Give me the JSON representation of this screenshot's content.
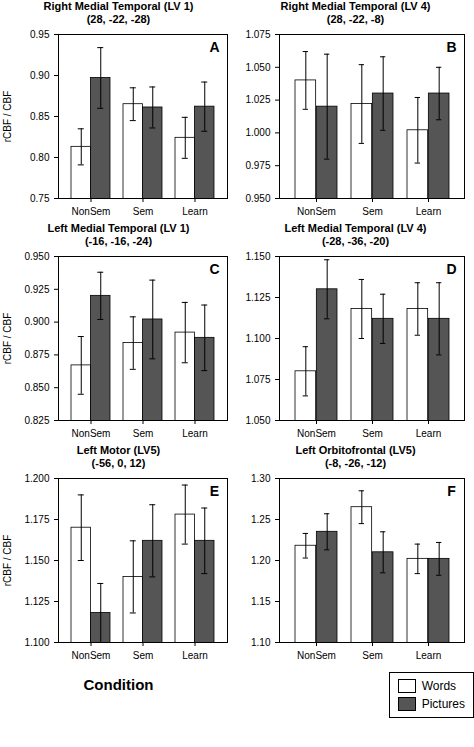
{
  "chart_data": [
    {
      "type": "bar",
      "title": "Right Medial Temporal (LV 1)",
      "subtitle": "(28, -22, -28)",
      "categories": [
        "NonSem",
        "Sem",
        "Learn"
      ],
      "series": [
        {
          "name": "Words",
          "color": "#ffffff",
          "values": [
            0.813,
            0.865,
            0.824
          ],
          "errors": [
            0.022,
            0.02,
            0.025
          ]
        },
        {
          "name": "Pictures",
          "color": "#555555",
          "values": [
            0.897,
            0.861,
            0.862
          ],
          "errors": [
            0.037,
            0.025,
            0.03
          ]
        }
      ],
      "ylabel": "rCBF / CBF",
      "ylim": [
        0.75,
        0.95
      ],
      "yticks": [
        0.75,
        {
          "value": 0.8,
          "label": "0.80"
        },
        0.85,
        {
          "value": 0.9,
          "label": "0.90"
        },
        0.95
      ],
      "grid": false,
      "annotations": [
        "A"
      ]
    },
    {
      "type": "bar",
      "title": "Right Medial Temporal (LV 4)",
      "subtitle": "(28, -22, -8)",
      "categories": [
        "NonSem",
        "Sem",
        "Learn"
      ],
      "series": [
        {
          "name": "Words",
          "color": "#ffffff",
          "values": [
            1.04,
            1.022,
            1.002
          ],
          "errors": [
            0.022,
            0.03,
            0.025
          ]
        },
        {
          "name": "Pictures",
          "color": "#555555",
          "values": [
            1.02,
            1.03,
            1.03
          ],
          "errors": [
            0.04,
            0.028,
            0.02
          ]
        }
      ],
      "ylim": [
        0.95,
        1.075
      ],
      "yticks": [
        {
          "value": 0.95,
          "label": "0.950"
        },
        0.975,
        {
          "value": 1.0,
          "label": "1.000"
        },
        1.025,
        {
          "value": 1.05,
          "label": "1.050"
        },
        1.075
      ],
      "grid": false,
      "annotations": [
        "B"
      ]
    },
    {
      "type": "bar",
      "title": "Left Medial Temporal (LV 1)",
      "subtitle": "(-16, -16, -24)",
      "categories": [
        "NonSem",
        "Sem",
        "Learn"
      ],
      "series": [
        {
          "name": "Words",
          "color": "#ffffff",
          "values": [
            0.867,
            0.884,
            0.892
          ],
          "errors": [
            0.022,
            0.02,
            0.023
          ]
        },
        {
          "name": "Pictures",
          "color": "#555555",
          "values": [
            0.92,
            0.902,
            0.888
          ],
          "errors": [
            0.018,
            0.03,
            0.025
          ]
        }
      ],
      "ylabel": "rCBF / CBF",
      "ylim": [
        0.825,
        0.95
      ],
      "yticks": [
        0.825,
        {
          "value": 0.85,
          "label": "0.850"
        },
        0.875,
        {
          "value": 0.9,
          "label": "0.900"
        },
        0.925,
        {
          "value": 0.95,
          "label": "0.950"
        }
      ],
      "grid": false,
      "annotations": [
        "C"
      ]
    },
    {
      "type": "bar",
      "title": "Left Medial Temporal (LV 4)",
      "subtitle": "(-28, -36, -20)",
      "categories": [
        "NonSem",
        "Sem",
        "Learn"
      ],
      "series": [
        {
          "name": "Words",
          "color": "#ffffff",
          "values": [
            1.08,
            1.118,
            1.118
          ],
          "errors": [
            0.015,
            0.018,
            0.016
          ]
        },
        {
          "name": "Pictures",
          "color": "#555555",
          "values": [
            1.13,
            1.112,
            1.112
          ],
          "errors": [
            0.018,
            0.015,
            0.022
          ]
        }
      ],
      "ylim": [
        1.05,
        1.15
      ],
      "yticks": [
        {
          "value": 1.05,
          "label": "1.050"
        },
        1.075,
        {
          "value": 1.1,
          "label": "1.100"
        },
        1.125,
        {
          "value": 1.15,
          "label": "1.150"
        }
      ],
      "grid": false,
      "annotations": [
        "D"
      ]
    },
    {
      "type": "bar",
      "title": "Left Motor (LV5)",
      "subtitle": "(-56, 0, 12)",
      "categories": [
        "NonSem",
        "Sem",
        "Learn"
      ],
      "series": [
        {
          "name": "Words",
          "color": "#ffffff",
          "values": [
            1.17,
            1.14,
            1.178
          ],
          "errors": [
            0.02,
            0.022,
            0.018
          ]
        },
        {
          "name": "Pictures",
          "color": "#555555",
          "values": [
            1.118,
            1.162,
            1.162
          ],
          "errors": [
            0.018,
            0.022,
            0.02
          ]
        }
      ],
      "ylabel": "rCBF / CBF",
      "xlabel": "Condition",
      "ylim": [
        1.1,
        1.2
      ],
      "yticks": [
        {
          "value": 1.1,
          "label": "1.100"
        },
        1.125,
        {
          "value": 1.15,
          "label": "1.150"
        },
        1.175,
        {
          "value": 1.2,
          "label": "1.200"
        }
      ],
      "grid": false,
      "annotations": [
        "E"
      ]
    },
    {
      "type": "bar",
      "title": "Left Orbitofrontal (LV5)",
      "subtitle": "(-8, -26, -12)",
      "categories": [
        "NonSem",
        "Sem",
        "Learn"
      ],
      "series": [
        {
          "name": "Words",
          "color": "#ffffff",
          "values": [
            1.218,
            1.265,
            1.202
          ],
          "errors": [
            0.015,
            0.02,
            0.018
          ]
        },
        {
          "name": "Pictures",
          "color": "#555555",
          "values": [
            1.235,
            1.21,
            1.202
          ],
          "errors": [
            0.022,
            0.025,
            0.02
          ]
        }
      ],
      "ylim": [
        1.1,
        1.3
      ],
      "yticks": [
        {
          "value": 1.1,
          "label": "1.10"
        },
        1.15,
        {
          "value": 1.2,
          "label": "1.20"
        },
        1.25,
        {
          "value": 1.3,
          "label": "1.30"
        }
      ],
      "grid": false,
      "legend": "lower right",
      "annotations": [
        "F"
      ]
    }
  ]
}
